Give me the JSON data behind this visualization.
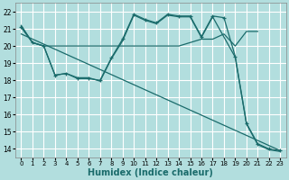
{
  "xlabel": "Humidex (Indice chaleur)",
  "bg_color": "#b2dede",
  "grid_color": "#ffffff",
  "line_color": "#1a6b6b",
  "ylim": [
    13.5,
    22.5
  ],
  "xlim": [
    -0.5,
    23.5
  ],
  "yticks": [
    14,
    15,
    16,
    17,
    18,
    19,
    20,
    21,
    22
  ],
  "xticks": [
    0,
    1,
    2,
    3,
    4,
    5,
    6,
    7,
    8,
    9,
    10,
    11,
    12,
    13,
    14,
    15,
    16,
    17,
    18,
    19,
    20,
    21,
    22,
    23
  ],
  "line1_x": [
    0,
    1,
    2,
    3,
    4,
    5,
    6,
    7,
    8,
    9,
    10,
    11,
    12,
    13,
    14,
    15,
    16,
    17,
    18,
    19,
    20,
    21
  ],
  "line1_y": [
    21.2,
    20.2,
    20.0,
    20.0,
    20.0,
    20.0,
    20.0,
    20.0,
    20.0,
    20.0,
    20.0,
    20.0,
    20.0,
    20.0,
    20.0,
    20.2,
    20.4,
    20.4,
    20.7,
    20.0,
    20.85,
    20.85
  ],
  "line2_x": [
    0,
    1,
    2,
    3,
    4,
    5,
    6,
    7,
    8,
    9,
    10,
    11,
    12,
    13,
    14,
    15,
    16,
    17,
    18,
    19,
    20,
    21,
    22,
    23
  ],
  "line2_y": [
    21.1,
    20.2,
    20.0,
    18.3,
    18.4,
    18.1,
    18.1,
    18.0,
    19.3,
    20.4,
    21.85,
    21.55,
    21.35,
    21.85,
    21.75,
    21.75,
    20.55,
    21.75,
    21.65,
    19.4,
    15.5,
    14.3,
    14.0,
    13.9
  ],
  "line3_x": [
    0,
    1,
    2,
    3,
    4,
    5,
    6,
    7,
    8,
    9,
    10,
    11,
    12,
    13,
    14,
    15,
    16,
    17,
    19,
    20,
    21,
    22,
    23
  ],
  "line3_y": [
    21.1,
    20.2,
    20.0,
    18.3,
    18.4,
    18.15,
    18.15,
    17.95,
    19.25,
    20.3,
    21.8,
    21.5,
    21.3,
    21.8,
    21.7,
    21.7,
    20.5,
    21.7,
    19.35,
    15.45,
    14.25,
    13.95,
    13.85
  ],
  "line4_x": [
    0,
    23
  ],
  "line4_y": [
    20.7,
    13.9
  ]
}
